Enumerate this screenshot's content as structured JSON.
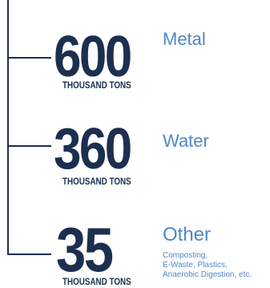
{
  "stats": [
    {
      "value": "600",
      "unit": "THOUSAND TONS",
      "category": "Metal"
    },
    {
      "value": "360",
      "unit": "THOUSAND TONS",
      "category": "Water"
    },
    {
      "value": "35",
      "unit": "THOUSAND TONS",
      "category": "Other",
      "details": [
        "Composting,",
        "E-Waste, Plastics,",
        "Anaerobic Digestion, etc."
      ]
    }
  ],
  "colors": {
    "number": "#1c2f4f",
    "category": "#4f88c4",
    "connector": "#1c2f4f"
  }
}
